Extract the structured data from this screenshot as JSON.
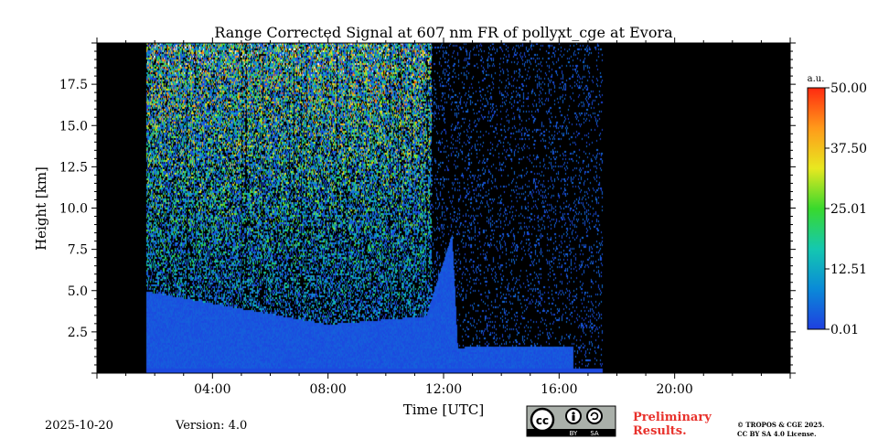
{
  "chart_data": {
    "type": "heatmap",
    "title": "Range Corrected Signal at 607 nm FR of pollyxt_cge at Evora",
    "xlabel": "Time [UTC]",
    "ylabel": "Height [km]",
    "xlim": [
      0,
      24
    ],
    "ylim": [
      0,
      20
    ],
    "x_ticks": [
      "04:00",
      "08:00",
      "12:00",
      "16:00",
      "20:00"
    ],
    "y_ticks": [
      "2.5",
      "5.0",
      "7.5",
      "10.0",
      "12.5",
      "15.0",
      "17.5"
    ],
    "measurement_period_utc": [
      1.7,
      17.5
    ],
    "dense_signal_segments": [
      {
        "start_utc": 1.7,
        "end_utc": 11.6,
        "top_km": 20.0
      },
      {
        "start_utc": 11.6,
        "end_utc": 12.4,
        "top_km": 20.0
      },
      {
        "start_utc": 12.4,
        "end_utc": 17.5,
        "top_km": 20.0
      }
    ],
    "low_layer_top_km": [
      {
        "time_utc": 1.7,
        "height_km": 5.0
      },
      {
        "time_utc": 8.0,
        "height_km": 3.0
      },
      {
        "time_utc": 11.4,
        "height_km": 3.5
      },
      {
        "time_utc": 12.3,
        "height_km": 8.5
      },
      {
        "time_utc": 12.5,
        "height_km": 1.6
      },
      {
        "time_utc": 16.5,
        "height_km": 1.7
      }
    ],
    "colorbar": {
      "unit": "a.u.",
      "min": 0.01,
      "max": 50.0,
      "tick_labels": [
        "0.01",
        "12.51",
        "25.01",
        "37.50",
        "50.00"
      ],
      "colormap": [
        "#1f3fe0",
        "#0a8ad8",
        "#14c8b0",
        "#39d92d",
        "#e8e820",
        "#ff9a1a",
        "#ff2a10"
      ]
    },
    "background_color": "#000000"
  },
  "footer": {
    "date": "2025-10-20",
    "version": "Version: 4.0",
    "preliminary_line1": "Preliminary",
    "preliminary_line2": "Results.",
    "copyright_line1": "© TROPOS & CGE 2025.",
    "copyright_line2": "CC BY SA 4.0 License.",
    "license_badge_text": [
      "BY",
      "SA"
    ]
  }
}
